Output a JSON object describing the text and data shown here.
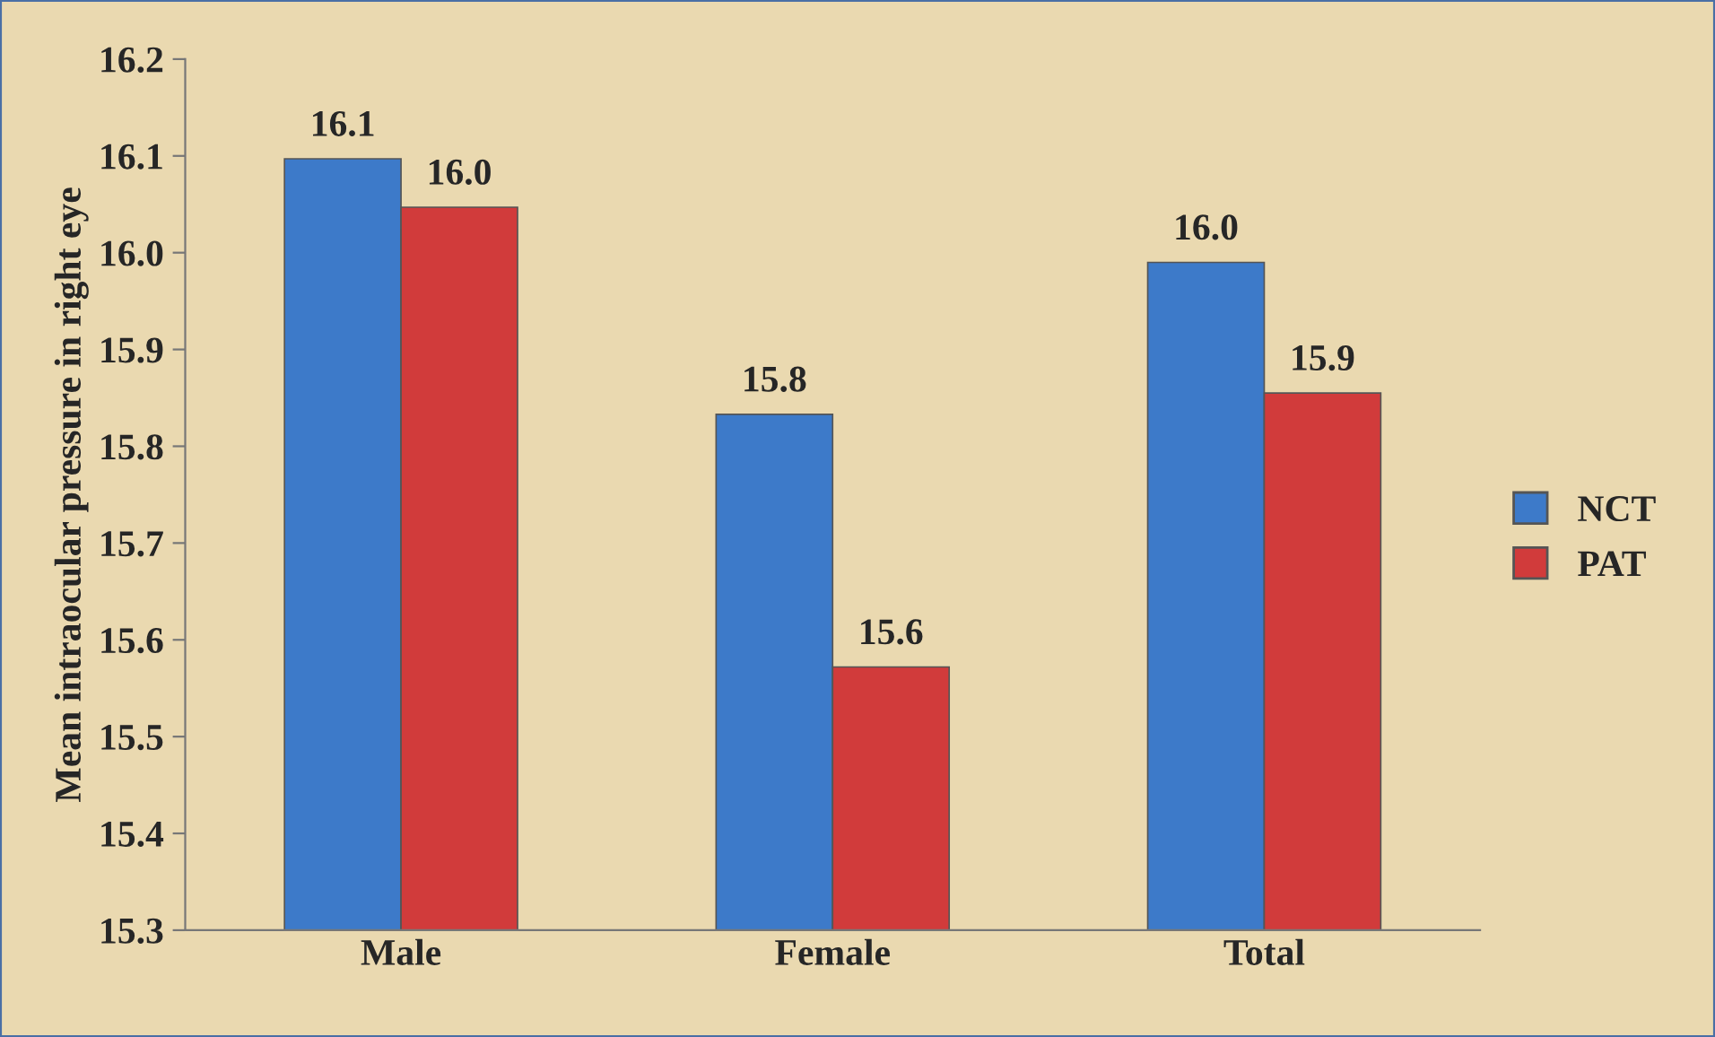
{
  "chart_data": {
    "type": "bar",
    "ylabel": "Mean intraocular pressure in right eye",
    "categories": [
      "Male",
      "Female",
      "Total"
    ],
    "series": [
      {
        "name": "NCT",
        "color": "#3d7ac9",
        "values": [
          16.097,
          15.833,
          15.99
        ],
        "value_labels": [
          "16.1",
          "15.8",
          "16.0"
        ]
      },
      {
        "name": "PAT",
        "color": "#d13b3b",
        "values": [
          16.047,
          15.572,
          15.855
        ],
        "value_labels": [
          "16.0",
          "15.6",
          "15.9"
        ]
      }
    ],
    "ylim": [
      15.3,
      16.2
    ],
    "yticks": [
      15.3,
      15.4,
      15.5,
      15.6,
      15.7,
      15.8,
      15.9,
      {
        "value": 16.0,
        "label": "16.0"
      },
      16.1,
      16.2
    ],
    "grid": false,
    "legend": "right"
  }
}
